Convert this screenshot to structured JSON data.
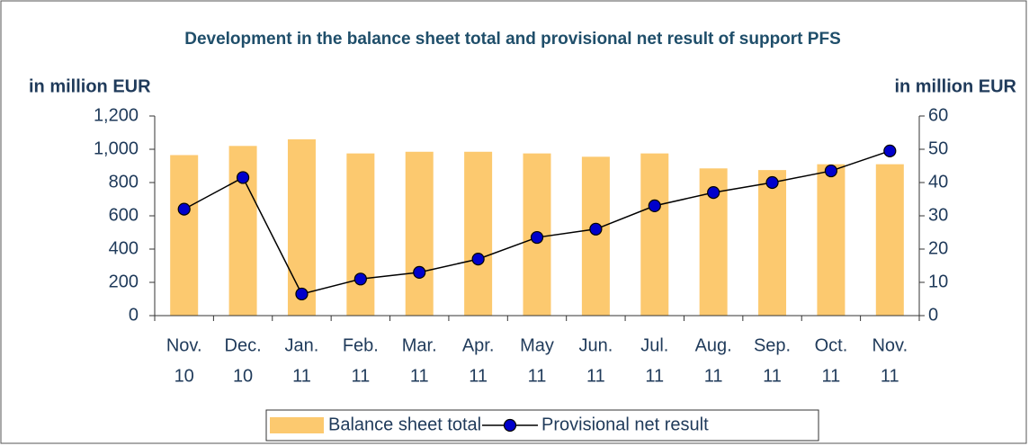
{
  "chart_data": {
    "type": "bar_line",
    "title": "Development in the balance sheet total and provisional net result of support PFS",
    "y_axis_label": "in million EUR",
    "y2_axis_label": "in million EUR",
    "categories": [
      [
        "Nov.",
        "10"
      ],
      [
        "Dec.",
        "10"
      ],
      [
        "Jan.",
        "11"
      ],
      [
        "Feb.",
        "11"
      ],
      [
        "Mar.",
        "11"
      ],
      [
        "Apr.",
        "11"
      ],
      [
        "May",
        "11"
      ],
      [
        "Jun.",
        "11"
      ],
      [
        "Jul.",
        "11"
      ],
      [
        "Aug.",
        "11"
      ],
      [
        "Sep.",
        "11"
      ],
      [
        "Oct.",
        "11"
      ],
      [
        "Nov.",
        "11"
      ]
    ],
    "series": [
      {
        "name": "Balance sheet total",
        "type": "bar",
        "color": "#fcc96f",
        "axis": "y",
        "values": [
          965,
          1020,
          1060,
          975,
          985,
          985,
          975,
          955,
          975,
          885,
          875,
          910,
          910
        ]
      },
      {
        "name": "Provisional net result",
        "type": "line",
        "color": "#000000",
        "marker_color": "#0000cc",
        "axis": "y2",
        "values": [
          32,
          41.5,
          6.5,
          11,
          13,
          17,
          23.5,
          26,
          33,
          37,
          40,
          43.5,
          49.5
        ]
      }
    ],
    "ylim": [
      0,
      1200
    ],
    "yticks": [
      0,
      200,
      400,
      600,
      800,
      {
        "value": 1000,
        "label": "1,000"
      },
      {
        "value": 1200,
        "label": "1,200"
      }
    ],
    "y2lim": [
      0,
      60
    ],
    "y2ticks": [
      0,
      10,
      20,
      30,
      40,
      50,
      60
    ],
    "grid": false
  }
}
